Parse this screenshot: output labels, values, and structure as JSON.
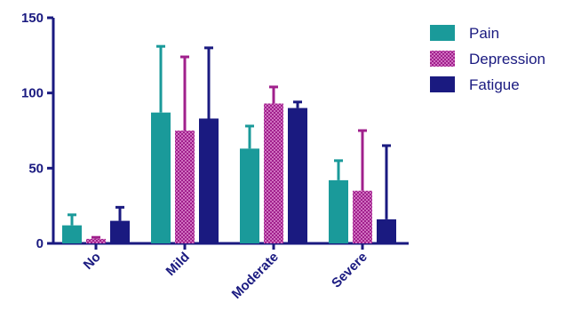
{
  "chart_data": {
    "type": "bar",
    "title": "",
    "xlabel": "",
    "ylabel": "",
    "categories": [
      "No",
      "Mild",
      "Moderate",
      "Severe"
    ],
    "ylim": [
      0,
      150
    ],
    "yticks": [
      0,
      50,
      100,
      150
    ],
    "grid": false,
    "legend_position": "top-right",
    "error_bars": "upper",
    "series": [
      {
        "name": "Pain",
        "color": "#1a9a9a",
        "pattern": "solid",
        "values": [
          12,
          87,
          63,
          42
        ],
        "errors": [
          7,
          44,
          15,
          13
        ]
      },
      {
        "name": "Depression",
        "color": "#a0208c",
        "pattern": "checker",
        "values": [
          3,
          75,
          93,
          35
        ],
        "errors": [
          1,
          49,
          11,
          40
        ]
      },
      {
        "name": "Fatigue",
        "color": "#1a1a80",
        "pattern": "solid",
        "values": [
          15,
          83,
          90,
          16
        ],
        "errors": [
          9,
          47,
          4,
          49
        ]
      }
    ]
  }
}
